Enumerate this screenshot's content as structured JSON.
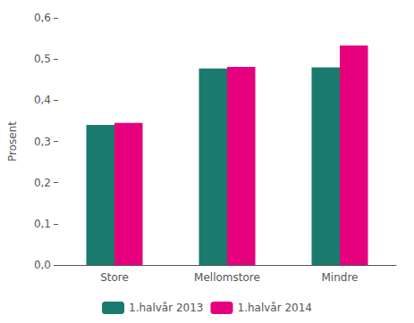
{
  "chart_data": {
    "type": "bar",
    "categories": [
      "Store",
      "Mellomstore",
      "Mindre"
    ],
    "series": [
      {
        "name": "1.halvår 2013",
        "color": "#1a7a6e",
        "values": [
          0.34,
          0.477,
          0.48
        ]
      },
      {
        "name": "1.halvår 2014",
        "color": "#e6007e",
        "values": [
          0.345,
          0.481,
          0.533
        ]
      }
    ],
    "ylabel": "Prosent",
    "ylim": [
      0,
      0.6
    ],
    "yticks": [
      {
        "value": 0.0,
        "label": "0,0"
      },
      {
        "value": 0.1,
        "label": "0,1"
      },
      {
        "value": 0.2,
        "label": "0,2"
      },
      {
        "value": 0.3,
        "label": "0,3"
      },
      {
        "value": 0.4,
        "label": "0,4"
      },
      {
        "value": 0.5,
        "label": "0,5"
      },
      {
        "value": 0.6,
        "label": "0,6"
      }
    ],
    "grid": false,
    "legend": "bottom"
  }
}
